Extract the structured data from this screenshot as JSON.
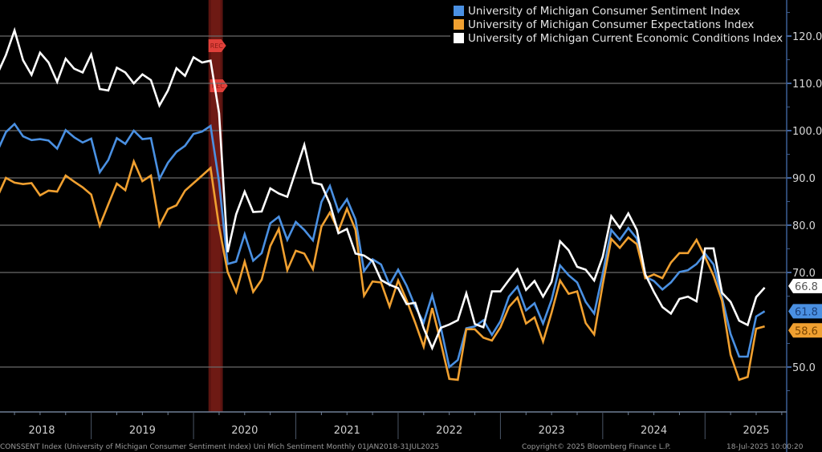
{
  "chart_data": {
    "type": "line",
    "title": "",
    "xlabel": "",
    "ylabel": "",
    "ylim": [
      43,
      126
    ],
    "grid": true,
    "legend_position": "top-right",
    "y_ticks": [
      "120.0",
      "110.0",
      "100.0",
      "90.0",
      "80.0",
      "70.0",
      "50.0"
    ],
    "y_tick_values": [
      120,
      110,
      100,
      90,
      80,
      70,
      50
    ],
    "x_tick_labels": [
      "2018",
      "2019",
      "2020",
      "2021",
      "2022",
      "2023",
      "2024",
      "2025"
    ],
    "x_start": "2018-01",
    "frequency": "monthly",
    "recession_band": {
      "label": "REC",
      "start": "2020-02",
      "end": "2020-04"
    },
    "series": [
      {
        "name": "University of Michigan Consumer Sentiment Index",
        "color": "#4a90e2",
        "last_value": "61.8",
        "values": [
          95.7,
          99.7,
          101.4,
          98.8,
          98.0,
          98.2,
          97.9,
          96.2,
          100.1,
          98.6,
          97.5,
          98.3,
          91.2,
          93.8,
          98.4,
          97.2,
          100.0,
          98.2,
          98.4,
          89.8,
          93.2,
          95.5,
          96.8,
          99.3,
          99.8,
          101.0,
          89.1,
          71.8,
          72.3,
          78.1,
          72.5,
          74.1,
          80.4,
          81.8,
          76.9,
          80.7,
          79.0,
          76.8,
          84.9,
          88.3,
          82.9,
          85.5,
          81.2,
          70.3,
          72.8,
          71.7,
          67.4,
          70.6,
          67.2,
          62.8,
          59.4,
          65.2,
          58.4,
          50.0,
          51.5,
          58.2,
          58.6,
          59.9,
          56.8,
          59.7,
          64.9,
          67.0,
          62.0,
          63.5,
          59.2,
          64.2,
          71.5,
          69.4,
          67.9,
          63.8,
          61.3,
          69.7,
          79.0,
          76.9,
          79.4,
          77.2,
          69.1,
          68.2,
          66.4,
          67.9,
          70.1,
          70.5,
          71.8,
          74.0,
          71.7,
          64.7,
          57.0,
          52.2,
          52.2,
          60.7,
          61.8
        ]
      },
      {
        "name": "University of Michigan Consumer Expectations Index",
        "color": "#f0a030",
        "last_value": "58.6",
        "values": [
          86.0,
          90.0,
          89.0,
          88.7,
          88.9,
          86.3,
          87.3,
          87.1,
          90.5,
          89.2,
          88.0,
          86.5,
          79.9,
          84.4,
          88.8,
          87.4,
          93.5,
          89.3,
          90.5,
          79.9,
          83.4,
          84.2,
          87.3,
          88.9,
          90.5,
          92.1,
          79.7,
          70.1,
          65.9,
          72.3,
          65.9,
          68.5,
          75.6,
          79.2,
          70.5,
          74.6,
          74.0,
          70.7,
          79.7,
          82.7,
          78.8,
          83.5,
          79.0,
          65.1,
          68.1,
          67.9,
          62.8,
          68.3,
          64.1,
          59.4,
          54.3,
          62.5,
          55.2,
          47.5,
          47.3,
          58.0,
          58.0,
          56.2,
          55.6,
          58.4,
          62.7,
          64.7,
          59.2,
          60.5,
          55.4,
          61.5,
          68.3,
          65.5,
          66.0,
          59.3,
          56.9,
          67.4,
          77.1,
          75.2,
          77.4,
          76.0,
          68.8,
          69.6,
          68.8,
          72.1,
          74.1,
          74.1,
          76.9,
          73.3,
          69.3,
          64.0,
          52.6,
          47.3,
          47.9,
          58.1,
          58.6
        ]
      },
      {
        "name": "University of Michigan Current Economic Conditions Index",
        "color": "#ffffff",
        "last_value": "66.8",
        "values": [
          112.0,
          116.0,
          121.2,
          114.9,
          111.8,
          116.5,
          114.4,
          110.3,
          115.2,
          113.1,
          112.3,
          116.1,
          108.8,
          108.5,
          113.3,
          112.3,
          110.0,
          111.9,
          110.7,
          105.3,
          108.5,
          113.2,
          111.6,
          115.5,
          114.4,
          114.8,
          103.7,
          74.3,
          82.3,
          87.1,
          82.8,
          82.9,
          87.8,
          86.7,
          86.0,
          91.5,
          97.0,
          89.0,
          88.6,
          84.5,
          78.3,
          79.2,
          74.0,
          73.6,
          72.4,
          68.4,
          67.4,
          66.7,
          63.3,
          63.6,
          58.2,
          54.0,
          58.3,
          59.0,
          59.9,
          65.6,
          59.1,
          58.4,
          66.0,
          66.0,
          68.4,
          70.7,
          66.3,
          68.2,
          64.9,
          68.0,
          76.6,
          74.7,
          71.2,
          70.6,
          68.3,
          73.3,
          81.9,
          79.4,
          82.5,
          79.0,
          69.6,
          65.9,
          62.7,
          61.3,
          64.4,
          64.9,
          63.9,
          75.1,
          75.1,
          65.7,
          63.8,
          59.8,
          58.9,
          64.8,
          66.8
        ]
      }
    ]
  },
  "legend": {
    "items": [
      {
        "label": "University of Michigan Consumer Sentiment Index",
        "color": "#4a90e2"
      },
      {
        "label": "University of Michigan Consumer Expectations Index",
        "color": "#f0a030"
      },
      {
        "label": "University of Michigan Current Economic Conditions Index",
        "color": "#ffffff"
      }
    ]
  },
  "footer": {
    "source": "CONSSENT Index (University of Michigan Consumer Sentiment Index) Uni Mich Sentiment Monthly 01JAN2018-31JUL2025",
    "copyright": "Copyright© 2025 Bloomberg Finance L.P.",
    "timestamp": "18-Jul-2025 10:00:20"
  }
}
